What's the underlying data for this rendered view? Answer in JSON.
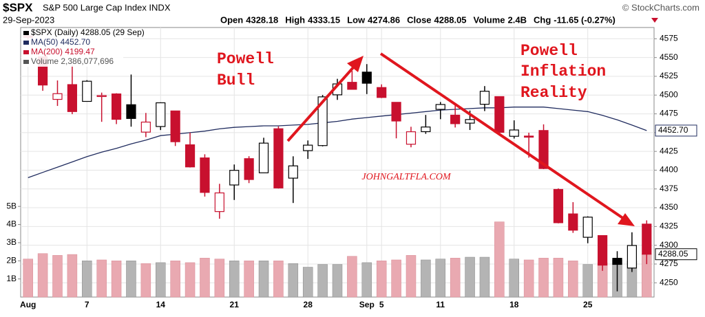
{
  "chart_data": {
    "type": "candlestick",
    "symbol": "$SPX",
    "name": "S&P 500 Large Cap Index INDX",
    "date": "29-Sep-2023",
    "source": "© StockCharts.com",
    "quote": [
      {
        "label": "Open",
        "value": 4328.18
      },
      {
        "label": "High",
        "value": 4333.15
      },
      {
        "label": "Low",
        "value": 4274.86
      },
      {
        "label": "Close",
        "value": 4288.05
      },
      {
        "label": "Volume",
        "value": "2.4B"
      },
      {
        "label": "Chg",
        "value": "-11.65 (-0.27%)"
      }
    ],
    "categories": [
      "Aug",
      null,
      null,
      null,
      "7",
      null,
      null,
      null,
      null,
      "14",
      null,
      null,
      null,
      null,
      "21",
      null,
      null,
      null,
      null,
      "28",
      null,
      null,
      null,
      "Sep",
      "5",
      null,
      null,
      null,
      "11",
      null,
      null,
      null,
      null,
      "18",
      null,
      null,
      null,
      null,
      "25",
      null,
      null,
      null,
      null
    ],
    "candles": {
      "name": "$SPX (Daily) 4288.05 (29 Sep)",
      "up_color": "#000000",
      "down_color": "#c8102e",
      "open": [
        4578.83,
        4550.93,
        4494.27,
        4513.96,
        4491.58,
        4498.03,
        4501.57,
        4487.16,
        4450.69,
        4458.13,
        4478.87,
        4433.79,
        4416.32,
        4344.88,
        4380.28,
        4415.33,
        4396.44,
        4455.16,
        4389.38,
        4426.03,
        4432.75,
        4500.34,
        4517.01,
        4530.6,
        4510.06,
        4490.35,
        4434.55,
        4451.3,
        4480.98,
        4473.27,
        4462.65,
        4487.78,
        4497.98,
        4445.13,
        4445.41,
        4452.81,
        4374.36,
        4341.74,
        4310.62,
        4312.88,
        4282.63,
        4269.65,
        4328.18
      ],
      "high": [
        4584.62,
        4550.93,
        4519.49,
        4540.34,
        4519.84,
        4503.31,
        4502.44,
        4527.37,
        4476.23,
        4490.33,
        4478.87,
        4449.95,
        4421.17,
        4381.82,
        4407.55,
        4418.59,
        4443.18,
        4458.3,
        4418.46,
        4439.56,
        4500.14,
        4521.65,
        4532.26,
        4541.25,
        4514.29,
        4490.35,
        4457.81,
        4473.53,
        4490.77,
        4487.11,
        4479.39,
        4511.99,
        4497.98,
        4466.36,
        4449.85,
        4461.03,
        4375.7,
        4357.4,
        4338.51,
        4313.01,
        4292.07,
        4317.27,
        4333.15
      ],
      "low": [
        4567.53,
        4505.75,
        4485.54,
        4474.55,
        4491.15,
        4464.39,
        4461.33,
        4457.92,
        4443.98,
        4453.44,
        4432.19,
        4403.55,
        4364.83,
        4335.31,
        4360.3,
        4382.77,
        4396.44,
        4375.55,
        4356.29,
        4414.98,
        4431.68,
        4493.59,
        4507.39,
        4501.35,
        4496.01,
        4442.38,
        4430.46,
        4448.38,
        4467.89,
        4456.83,
        4453.52,
        4478.69,
        4447.21,
        4442.11,
        4416.61,
        4401.38,
        4329.17,
        4316.49,
        4302.7,
        4265.98,
        4238.63,
        4264.38,
        4274.86
      ],
      "close": [
        4576.73,
        4513.39,
        4501.89,
        4478.03,
        4518.44,
        4499.38,
        4467.71,
        4468.83,
        4464.05,
        4489.72,
        4437.86,
        4404.33,
        4370.36,
        4369.71,
        4399.77,
        4387.55,
        4436.01,
        4376.31,
        4405.71,
        4433.31,
        4497.63,
        4514.87,
        4507.66,
        4515.77,
        4496.83,
        4465.48,
        4451.14,
        4457.49,
        4487.46,
        4461.9,
        4467.44,
        4505.1,
        4450.32,
        4453.53,
        4443.95,
        4402.2,
        4330.0,
        4320.06,
        4337.44,
        4273.53,
        4274.51,
        4299.7,
        4288.05
      ],
      "last_label": "4288.05"
    },
    "ma50": {
      "name": "MA(50) 4452.70",
      "color": "#1f2b5e",
      "values": [
        4390,
        4397,
        4404,
        4411,
        4418,
        4424,
        4429,
        4435,
        4440,
        4446,
        4448,
        4450,
        4452,
        4455,
        4457,
        4458,
        4459,
        4459,
        4460,
        4461,
        4463,
        4465,
        4468,
        4470,
        4472,
        4474,
        4476,
        4478,
        4480,
        4481,
        4482,
        4483,
        4483,
        4484,
        4484,
        4484,
        4482,
        4480,
        4478,
        4473,
        4467,
        4460,
        4452.7
      ],
      "last_label": "4452.70"
    },
    "ma200": {
      "name": "MA(200) 4199.47",
      "color": "#c8102e"
    },
    "volume": {
      "name": "Volume 2,386,077,696",
      "up_color": "#b4b4b4",
      "down_color": "#e9a9b1",
      "values": [
        2100000000,
        2400000000,
        2300000000,
        2350000000,
        2000000000,
        2050000000,
        2000000000,
        2000000000,
        1850000000,
        1900000000,
        2000000000,
        1900000000,
        2150000000,
        2100000000,
        2000000000,
        2000000000,
        2000000000,
        2000000000,
        1850000000,
        1650000000,
        1800000000,
        1800000000,
        2250000000,
        1900000000,
        2000000000,
        2050000000,
        2300000000,
        2050000000,
        2100000000,
        2150000000,
        2200000000,
        2200000000,
        4150000000,
        2100000000,
        2050000000,
        2150000000,
        2150000000,
        2000000000,
        1800000000,
        1900000000,
        2050000000,
        2000000000,
        2386077696
      ]
    },
    "ylim": [
      4231,
      4590
    ],
    "yticks": [
      4250,
      4275,
      4300,
      4325,
      4350,
      4375,
      4400,
      4425,
      4450,
      4475,
      4500,
      4525,
      4550,
      4575
    ],
    "y2lim": [
      0,
      14870000000
    ],
    "y2ticks": [
      {
        "value": 1000000000,
        "label": "1B"
      },
      {
        "value": 2000000000,
        "label": "2B"
      },
      {
        "value": 3000000000,
        "label": "3B"
      },
      {
        "value": 4000000000,
        "label": "4B"
      },
      {
        "value": 5000000000,
        "label": "5B"
      }
    ],
    "grid": true,
    "annotations": {
      "bull": [
        "Powell",
        "Bull"
      ],
      "reality": [
        "Powell",
        "Inflation",
        "Reality"
      ],
      "watermark": "JOHNGALTFLA.COM"
    }
  }
}
